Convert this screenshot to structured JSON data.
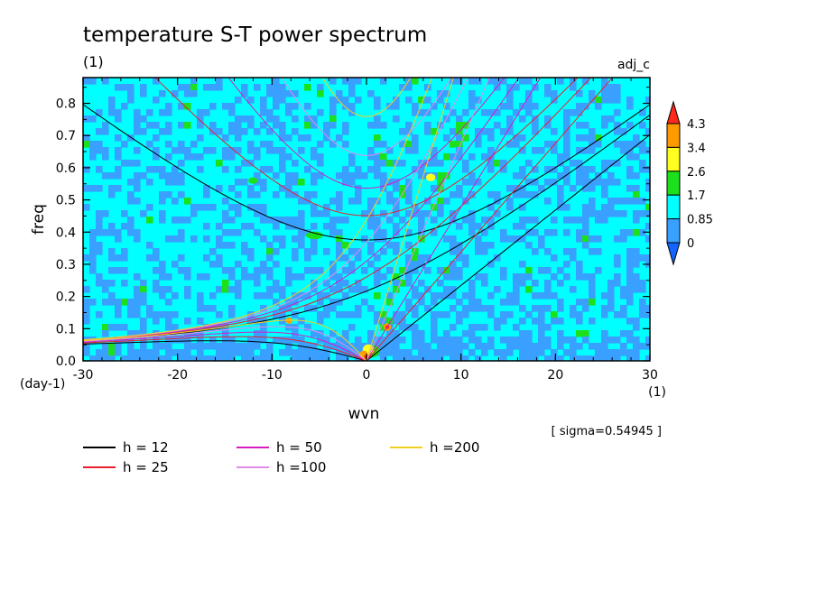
{
  "chart_data": {
    "type": "heatmap",
    "title": "temperature S-T power spectrum",
    "subtitle": "(1)",
    "case_label": "adj_c",
    "xlabel": "wvn",
    "x_unit": "(1)",
    "ylabel": "freq",
    "y_unit": "(day-1)",
    "xlim": [
      -30,
      30
    ],
    "ylim": [
      0,
      0.88
    ],
    "x_ticks": [
      "-30",
      "-20",
      "-10",
      "0",
      "10",
      "20",
      "30"
    ],
    "y_ticks": [
      "0.0",
      "0.1",
      "0.2",
      "0.3",
      "0.4",
      "0.5",
      "0.6",
      "0.7",
      "0.8"
    ],
    "sigma_note": "[ sigma=0.54945 ]",
    "colorbar": {
      "levels": [
        "4.3",
        "3.4",
        "2.6",
        "1.7",
        "0.85",
        "0"
      ],
      "colors": [
        "#ff2a1a",
        "#ff9a00",
        "#ffff20",
        "#1ce01c",
        "#00ffff",
        "#3aa0ff",
        "#1464ff"
      ]
    },
    "field_colors": {
      "background": "#00ffff",
      "low": "#3aa0ff",
      "mid": "#1ce01c",
      "high": "#ffff20",
      "higher": "#ff9a00",
      "peak": "#ff2a1a"
    },
    "dispersion_curves": [
      {
        "label": "h = 12",
        "h": 12,
        "color": "#000000"
      },
      {
        "label": "h = 25",
        "h": 25,
        "color": "#e8202a"
      },
      {
        "label": "h = 50",
        "h": 50,
        "color": "#d81bc0"
      },
      {
        "label": "h =100",
        "h": 100,
        "color": "#e08ce8"
      },
      {
        "label": "h =200",
        "h": 200,
        "color": "#f0d020"
      }
    ]
  }
}
